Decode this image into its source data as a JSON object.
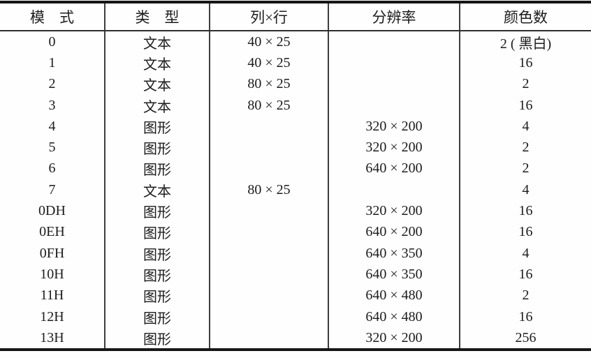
{
  "table": {
    "headers": [
      "模　式",
      "类　型",
      "列×行",
      "分辨率",
      "颜色数"
    ],
    "column_names": [
      "mode",
      "type",
      "cols-rows",
      "resolution",
      "color-count"
    ],
    "rows": [
      [
        "0",
        "文本",
        "40 × 25",
        "",
        "2 ( 黑白)"
      ],
      [
        "1",
        "文本",
        "40 × 25",
        "",
        "16"
      ],
      [
        "2",
        "文本",
        "80 × 25",
        "",
        "2"
      ],
      [
        "3",
        "文本",
        "80 × 25",
        "",
        "16"
      ],
      [
        "4",
        "图形",
        "",
        "320 × 200",
        "4"
      ],
      [
        "5",
        "图形",
        "",
        "320 × 200",
        "2"
      ],
      [
        "6",
        "图形",
        "",
        "640 × 200",
        "2"
      ],
      [
        "7",
        "文本",
        "80 × 25",
        "",
        "4"
      ],
      [
        "0DH",
        "图形",
        "",
        "320 × 200",
        "16"
      ],
      [
        "0EH",
        "图形",
        "",
        "640 × 200",
        "16"
      ],
      [
        "0FH",
        "图形",
        "",
        "640 × 350",
        "4"
      ],
      [
        "10H",
        "图形",
        "",
        "640 × 350",
        "16"
      ],
      [
        "11H",
        "图形",
        "",
        "640 × 480",
        "2"
      ],
      [
        "12H",
        "图形",
        "",
        "640 × 480",
        "16"
      ],
      [
        "13H",
        "图形",
        "",
        "320 × 200",
        "256"
      ]
    ],
    "colors": {
      "text": "#1c1c1c",
      "rule_thick": "#161616",
      "rule_thin": "#3d3d3d",
      "background": "#fefefe"
    }
  }
}
